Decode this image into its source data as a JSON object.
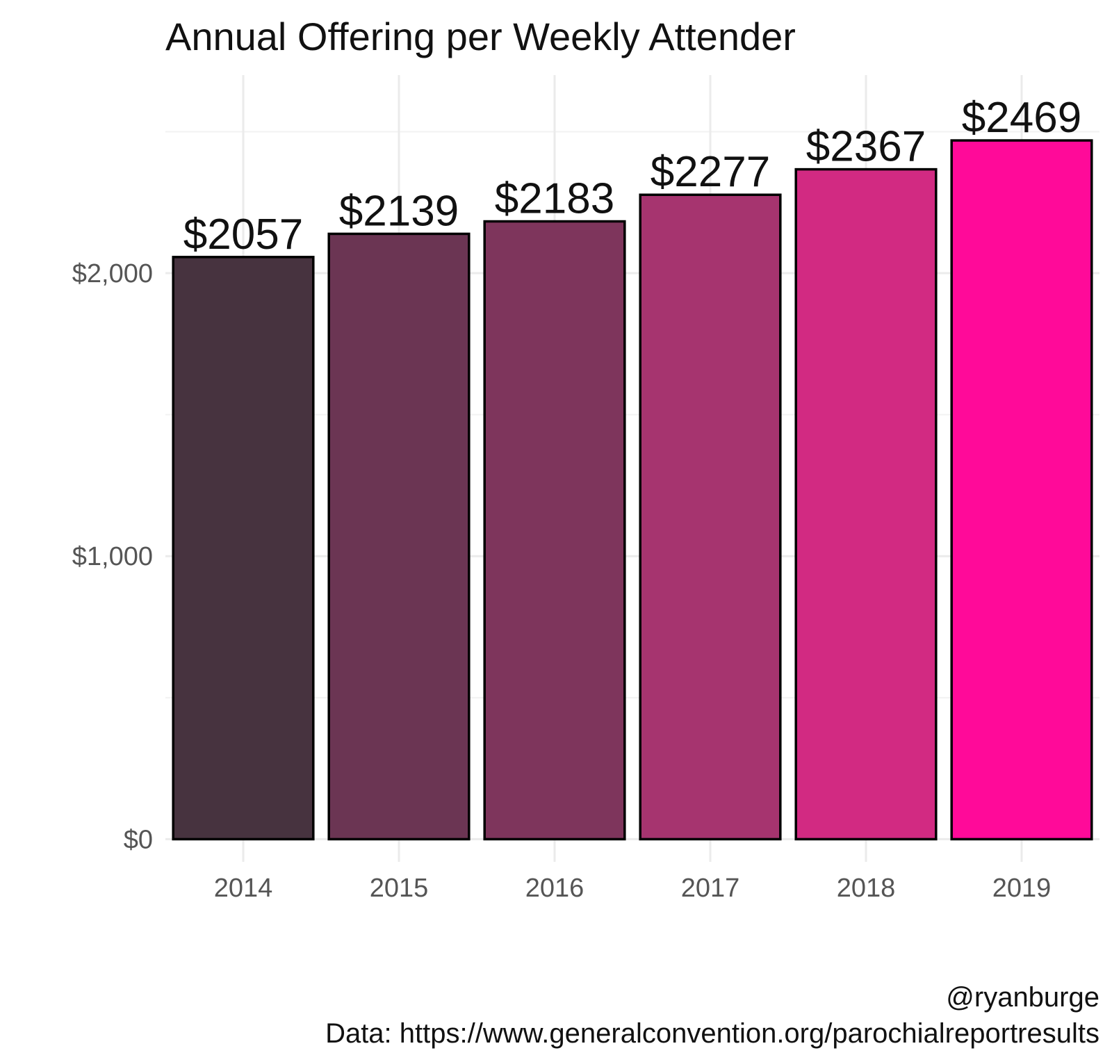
{
  "chart_data": {
    "type": "bar",
    "title": "Annual Offering per Weekly Attender",
    "categories": [
      "2014",
      "2015",
      "2016",
      "2017",
      "2018",
      "2019"
    ],
    "values": [
      2057,
      2139,
      2183,
      2277,
      2367,
      2469
    ],
    "data_labels": [
      "$2057",
      "$2139",
      "$2183",
      "$2277",
      "$2367",
      "$2469"
    ],
    "bar_colors": [
      "#47333F",
      "#6B3553",
      "#7E355C",
      "#A6346F",
      "#D22A82",
      "#FF0A99"
    ],
    "xlabel": "",
    "ylabel": "",
    "ylim": [
      -80,
      2700
    ],
    "yticks": [
      0,
      1000,
      2000
    ],
    "ytick_labels": [
      "$0",
      "$1,000",
      "$2,000"
    ],
    "minor_yticks": [
      500,
      1500,
      2500
    ],
    "grid": true,
    "legend": "none"
  },
  "caption": {
    "handle": "@ryanburge",
    "source": "Data: https://www.generalconvention.org/parochialreportresults"
  },
  "colors": {
    "grid": "#ebebeb",
    "tick_text": "#555555",
    "text": "#111111",
    "bar_outline": "#000000"
  }
}
